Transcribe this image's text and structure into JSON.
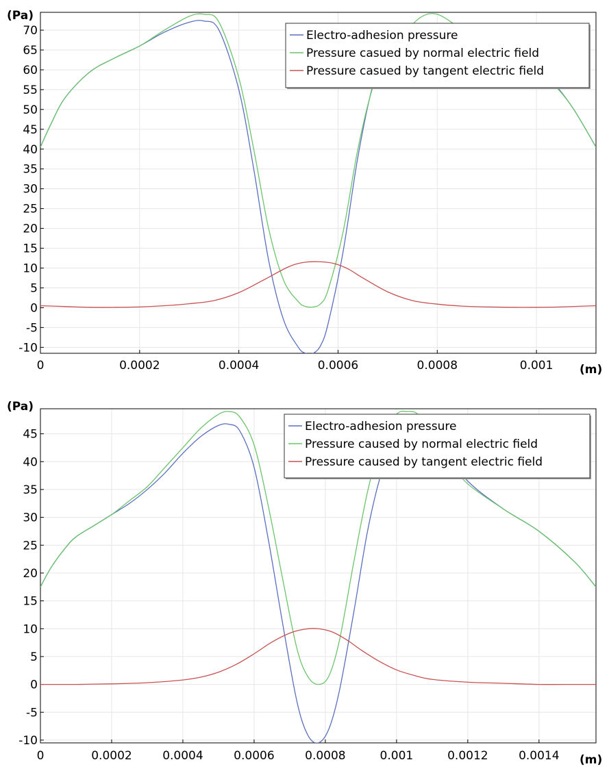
{
  "chart_data": [
    {
      "type": "line",
      "ylabel": "(Pa)",
      "xlabel": "(m)",
      "xlim": [
        0,
        0.00112
      ],
      "ylim": [
        -11.5,
        74.5
      ],
      "grid": true,
      "legend_position": "top-right",
      "x_ticks": [
        0,
        0.0002,
        0.0004,
        0.0006,
        0.0008,
        0.001
      ],
      "x_tick_labels": [
        "0",
        "0.0002",
        "0.0004",
        "0.0006",
        "0.0008",
        "0.001"
      ],
      "y_ticks": [
        -10,
        -5,
        0,
        5,
        10,
        15,
        20,
        25,
        30,
        35,
        40,
        45,
        50,
        55,
        60,
        65,
        70
      ],
      "y_tick_labels": [
        "-10",
        "-5",
        "0",
        "5",
        "10",
        "15",
        "20",
        "25",
        "30",
        "35",
        "40",
        "45",
        "50",
        "55",
        "60",
        "65",
        "70"
      ],
      "series": [
        {
          "name": "Electro-adhesion pressure",
          "color": "#5b6fc0",
          "x": [
            0,
            2e-05,
            5e-05,
            0.0001,
            0.00015,
            0.0002,
            0.00025,
            0.0003,
            0.00033,
            0.00036,
            0.0004,
            0.00043,
            0.00046,
            0.00049,
            0.00052,
            0.000535,
            0.00055,
            0.000565,
            0.00058,
            0.00061,
            0.00064,
            0.00067,
            0.0007,
            0.00074,
            0.00078,
            0.00082,
            0.00087,
            0.00092,
            0.00097,
            0.00102,
            0.00107,
            0.00112
          ],
          "y": [
            40.5,
            46,
            53,
            59.5,
            63,
            66,
            69.5,
            72,
            72.3,
            70,
            55,
            35,
            12,
            -3,
            -10,
            -11.5,
            -11.5,
            -9.5,
            -4,
            14,
            38,
            56,
            65.5,
            69.5,
            71.5,
            70.5,
            67.5,
            65,
            62,
            58.5,
            51,
            40.5
          ]
        },
        {
          "name": "Pressure casued by normal electric field",
          "color": "#6cc46c",
          "x": [
            0,
            2e-05,
            5e-05,
            0.0001,
            0.00015,
            0.0002,
            0.00025,
            0.0003,
            0.00033,
            0.00036,
            0.0004,
            0.00043,
            0.00046,
            0.00049,
            0.00052,
            0.000535,
            0.00055,
            0.000565,
            0.00058,
            0.00061,
            0.00064,
            0.00067,
            0.0007,
            0.00074,
            0.00077,
            0.0008,
            0.00084,
            0.00088,
            0.00092,
            0.00097,
            0.00102,
            0.00107,
            0.00112
          ],
          "y": [
            40.5,
            46,
            53,
            59.5,
            63,
            66,
            70,
            73.5,
            74,
            72,
            58,
            40,
            20,
            7,
            1.5,
            0.3,
            0.2,
            1,
            4.5,
            19,
            40,
            55.5,
            63,
            70,
            73.5,
            74,
            71,
            67,
            64,
            61.5,
            58,
            51,
            40.5
          ]
        },
        {
          "name": "Pressure casued by tangent electric field",
          "color": "#c85050",
          "x": [
            0,
            5e-05,
            0.0001,
            0.00015,
            0.0002,
            0.00025,
            0.0003,
            0.00035,
            0.0004,
            0.00045,
            0.0005,
            0.00053,
            0.00056,
            0.00059,
            0.00062,
            0.00065,
            0.0007,
            0.00075,
            0.0008,
            0.00085,
            0.0009,
            0.00095,
            0.001,
            0.00105,
            0.00112
          ],
          "y": [
            0.5,
            0.3,
            0.1,
            0.1,
            0.2,
            0.5,
            1,
            1.8,
            3.8,
            7,
            10.3,
            11.4,
            11.6,
            11.2,
            9.8,
            7.5,
            4,
            1.8,
            0.9,
            0.4,
            0.2,
            0.1,
            0.1,
            0.2,
            0.5
          ]
        }
      ]
    },
    {
      "type": "line",
      "ylabel": "(Pa)",
      "xlabel": "(m)",
      "xlim": [
        0,
        0.00156
      ],
      "ylim": [
        -10.5,
        49.5
      ],
      "grid": true,
      "legend_position": "top-right",
      "x_ticks": [
        0,
        0.0002,
        0.0004,
        0.0006,
        0.0008,
        0.001,
        0.0012,
        0.0014
      ],
      "x_tick_labels": [
        "0",
        "0.0002",
        "0.0004",
        "0.0006",
        "0.0008",
        "0.001",
        "0.0012",
        "0.0014"
      ],
      "y_ticks": [
        -10,
        -5,
        0,
        5,
        10,
        15,
        20,
        25,
        30,
        35,
        40,
        45
      ],
      "y_tick_labels": [
        "-10",
        "-5",
        "0",
        "5",
        "10",
        "15",
        "20",
        "25",
        "30",
        "35",
        "40",
        "45"
      ],
      "series": [
        {
          "name": "Electro-adhesion pressure",
          "color": "#5b6fc0",
          "x": [
            0,
            3e-05,
            7e-05,
            0.0001,
            0.00015,
            0.0002,
            0.00025,
            0.0003,
            0.00035,
            0.0004,
            0.00045,
            0.0005,
            0.00053,
            0.00056,
            0.0006,
            0.00064,
            0.00068,
            0.00072,
            0.00075,
            0.00078,
            0.00081,
            0.00084,
            0.00088,
            0.00092,
            0.00096,
            0.001,
            0.00104,
            0.00108,
            0.00112,
            0.0012,
            0.0013,
            0.0014,
            0.0015,
            0.00156
          ],
          "y": [
            17.5,
            21,
            24.5,
            26.5,
            28.5,
            30.5,
            32.5,
            35,
            38,
            41.5,
            44.5,
            46.5,
            46.7,
            45.5,
            39,
            26,
            11,
            -3,
            -9,
            -10.5,
            -8,
            -1,
            13,
            28,
            38.5,
            44.5,
            46.5,
            46.5,
            43,
            36.5,
            31.5,
            27.5,
            22,
            17.5
          ]
        },
        {
          "name": "Pressure caused by normal electric field",
          "color": "#6cc46c",
          "x": [
            0,
            3e-05,
            7e-05,
            0.0001,
            0.00015,
            0.0002,
            0.00025,
            0.0003,
            0.00035,
            0.0004,
            0.00045,
            0.0005,
            0.00053,
            0.00056,
            0.0006,
            0.00064,
            0.00068,
            0.00072,
            0.00075,
            0.00078,
            0.00081,
            0.00084,
            0.00088,
            0.00092,
            0.00096,
            0.001,
            0.00103,
            0.00106,
            0.0011,
            0.00115,
            0.0012,
            0.0013,
            0.0014,
            0.0015,
            0.00156
          ],
          "y": [
            17.5,
            21,
            24.5,
            26.5,
            28.5,
            30.5,
            33,
            35.5,
            39,
            42.5,
            46,
            48.5,
            49,
            48,
            43,
            32,
            19,
            6.5,
            1.5,
            0,
            1.5,
            8,
            22,
            35,
            44,
            48.5,
            49,
            48.5,
            45,
            40,
            36,
            31.5,
            27.5,
            22,
            17.5
          ]
        },
        {
          "name": "Pressure caused by tangent electric field",
          "color": "#c85050",
          "x": [
            0,
            0.0001,
            0.0002,
            0.0003,
            0.0004,
            0.00045,
            0.0005,
            0.00055,
            0.0006,
            0.00065,
            0.0007,
            0.00074,
            0.00078,
            0.00082,
            0.00086,
            0.0009,
            0.00095,
            0.001,
            0.00105,
            0.0011,
            0.0012,
            0.0013,
            0.0014,
            0.0015,
            0.00156
          ],
          "y": [
            0,
            0,
            0.1,
            0.3,
            0.8,
            1.3,
            2.2,
            3.6,
            5.5,
            7.6,
            9.2,
            9.9,
            10,
            9.4,
            8,
            6.2,
            4.2,
            2.6,
            1.6,
            0.9,
            0.4,
            0.2,
            0,
            0,
            0
          ]
        }
      ]
    }
  ]
}
